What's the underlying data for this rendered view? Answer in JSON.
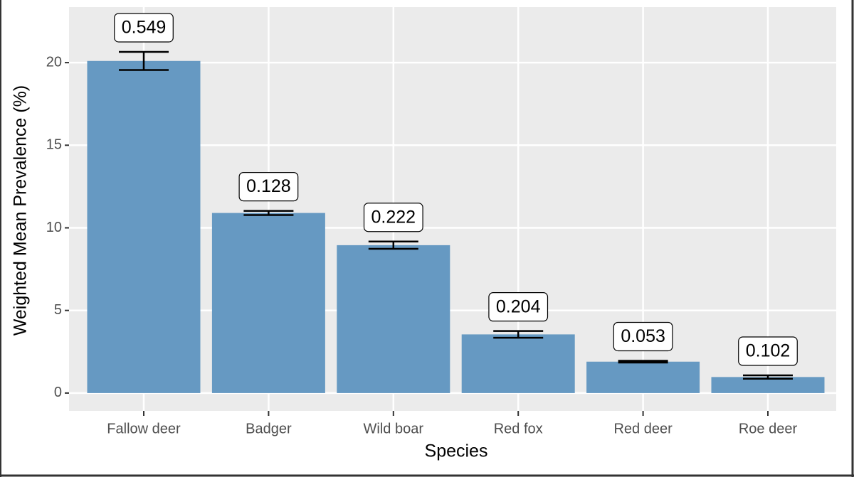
{
  "chart_data": {
    "type": "bar",
    "x_label": "Species",
    "y_label": "Weighted Mean Prevalence (%)",
    "categories": [
      "Fallow deer",
      "Badger",
      "Wild boar",
      "Red fox",
      "Red deer",
      "Roe deer"
    ],
    "values": [
      20.1,
      10.9,
      8.95,
      3.55,
      1.9,
      0.97
    ],
    "errors": [
      0.549,
      0.128,
      0.222,
      0.204,
      0.053,
      0.102
    ],
    "color": "#6699c2",
    "ylim": [
      -1.08,
      23.36
    ],
    "yticks": [
      0,
      5,
      10,
      15,
      20
    ],
    "grid": true
  }
}
